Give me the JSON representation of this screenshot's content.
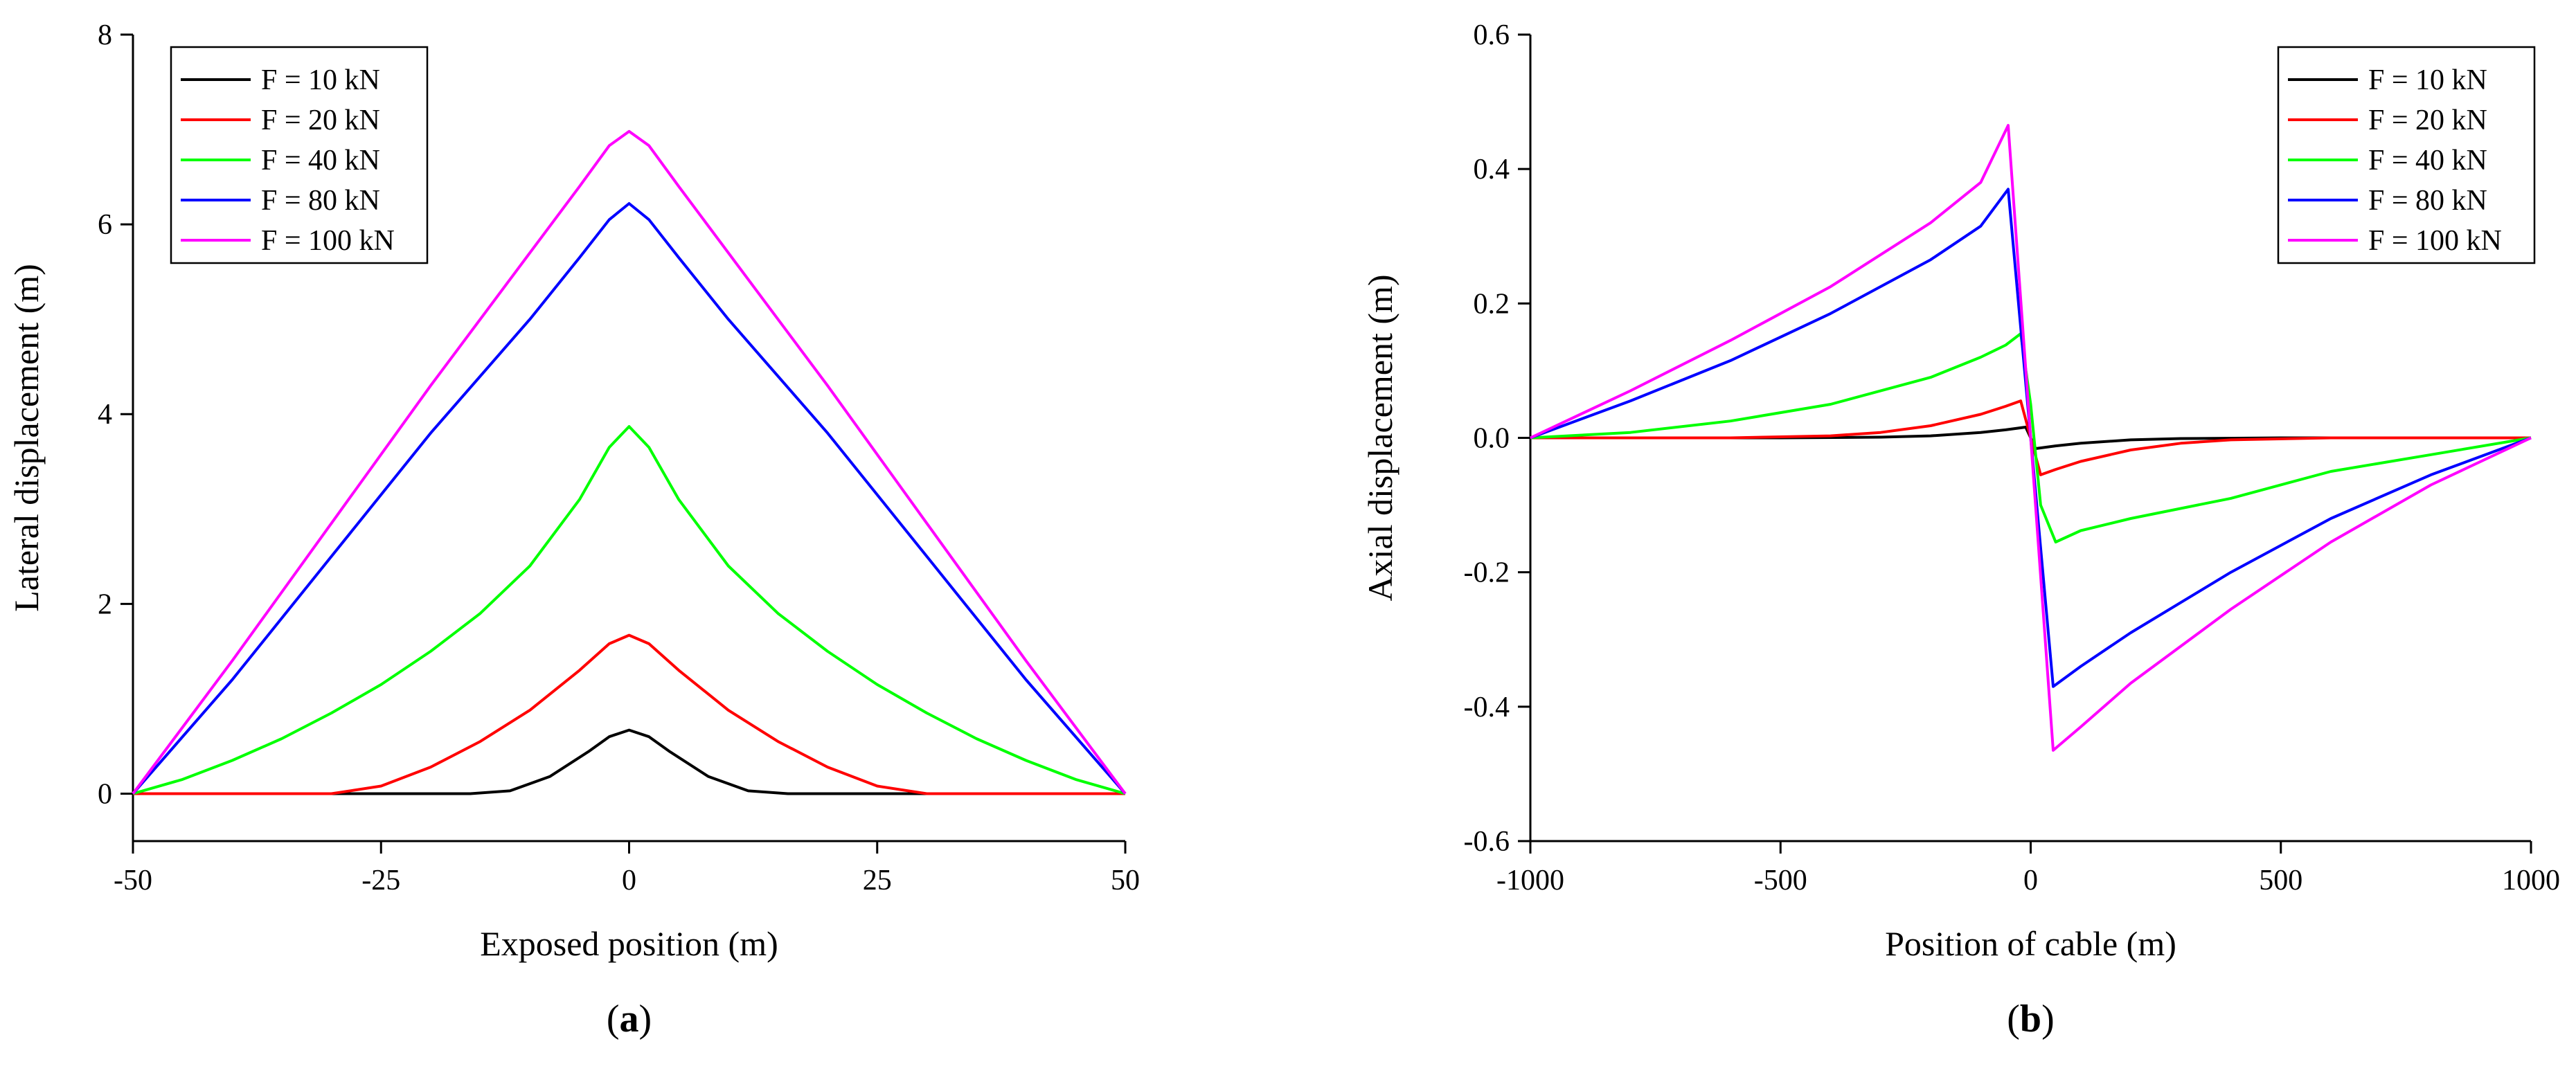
{
  "chart_data": [
    {
      "id": "a",
      "type": "line",
      "panel_label": "a",
      "title": "",
      "xlabel": "Exposed position (m)",
      "ylabel": "Lateral displacement (m)",
      "xlim": [
        -50,
        50
      ],
      "ylim": [
        -0.5,
        8
      ],
      "xticks": [
        -50,
        -25,
        0,
        25,
        50
      ],
      "xtick_labels": [
        "-50",
        "-25",
        "0",
        "25",
        "50"
      ],
      "yticks": [
        0,
        2,
        4,
        6,
        8
      ],
      "ytick_labels": [
        "0",
        "2",
        "4",
        "6",
        "8"
      ],
      "grid": false,
      "legend_position": "top-left",
      "series": [
        {
          "name": "F = 10 kN",
          "color": "#000000",
          "x": [
            -50,
            -20,
            -16,
            -12,
            -8,
            -4,
            -2,
            0,
            2,
            4,
            8,
            12,
            16,
            20,
            50
          ],
          "y": [
            0,
            0,
            0,
            0.03,
            0.18,
            0.45,
            0.6,
            0.67,
            0.6,
            0.45,
            0.18,
            0.03,
            0,
            0,
            0
          ]
        },
        {
          "name": "F = 20 kN",
          "color": "#ff0000",
          "x": [
            -50,
            -30,
            -25,
            -20,
            -15,
            -10,
            -5,
            -2,
            0,
            2,
            5,
            10,
            15,
            20,
            25,
            30,
            50
          ],
          "y": [
            0,
            0,
            0.08,
            0.28,
            0.55,
            0.88,
            1.3,
            1.58,
            1.67,
            1.58,
            1.3,
            0.88,
            0.55,
            0.28,
            0.08,
            0,
            0
          ]
        },
        {
          "name": "F = 40 kN",
          "color": "#00ff00",
          "x": [
            -50,
            -45,
            -40,
            -35,
            -30,
            -25,
            -20,
            -15,
            -10,
            -5,
            -2,
            0,
            2,
            5,
            10,
            15,
            20,
            25,
            30,
            35,
            40,
            45,
            50
          ],
          "y": [
            0,
            0.15,
            0.35,
            0.58,
            0.85,
            1.15,
            1.5,
            1.9,
            2.4,
            3.1,
            3.65,
            3.87,
            3.65,
            3.1,
            2.4,
            1.9,
            1.5,
            1.15,
            0.85,
            0.58,
            0.35,
            0.15,
            0
          ]
        },
        {
          "name": "F = 80 kN",
          "color": "#0000ff",
          "x": [
            -50,
            -40,
            -30,
            -20,
            -10,
            -5,
            -2,
            0,
            2,
            5,
            10,
            20,
            30,
            40,
            50
          ],
          "y": [
            0,
            1.2,
            2.5,
            3.8,
            5.0,
            5.65,
            6.05,
            6.22,
            6.05,
            5.65,
            5.0,
            3.8,
            2.5,
            1.2,
            0
          ]
        },
        {
          "name": "F = 100 kN",
          "color": "#ff00ff",
          "x": [
            -50,
            -40,
            -30,
            -20,
            -10,
            -5,
            -2,
            0,
            2,
            5,
            10,
            20,
            30,
            40,
            50
          ],
          "y": [
            0,
            1.4,
            2.85,
            4.3,
            5.7,
            6.4,
            6.83,
            6.98,
            6.83,
            6.4,
            5.7,
            4.3,
            2.85,
            1.4,
            0
          ]
        }
      ]
    },
    {
      "id": "b",
      "type": "line",
      "panel_label": "b",
      "title": "",
      "xlabel": "Position of cable (m)",
      "ylabel": "Axial displacement (m)",
      "xlim": [
        -1000,
        1000
      ],
      "ylim": [
        -0.6,
        0.6
      ],
      "xticks": [
        -1000,
        -500,
        0,
        500,
        1000
      ],
      "xtick_labels": [
        "-1000",
        "-500",
        "0",
        "500",
        "1000"
      ],
      "yticks": [
        -0.6,
        -0.4,
        -0.2,
        0,
        0.2,
        0.4,
        0.6
      ],
      "ytick_labels": [
        "-0.6",
        "-0.4",
        "-0.2",
        "0.0",
        "0.2",
        "0.4",
        "0.6"
      ],
      "grid": false,
      "legend_position": "top-right",
      "series": [
        {
          "name": "F = 10 kN",
          "color": "#000000",
          "x": [
            -1000,
            -500,
            -300,
            -200,
            -100,
            -50,
            -10,
            10,
            50,
            100,
            200,
            300,
            500,
            1000
          ],
          "y": [
            0,
            0,
            0.001,
            0.003,
            0.008,
            0.012,
            0.016,
            -0.016,
            -0.012,
            -0.008,
            -0.003,
            -0.001,
            0,
            0
          ]
        },
        {
          "name": "F = 20 kN",
          "color": "#ff0000",
          "x": [
            -1000,
            -600,
            -400,
            -300,
            -200,
            -100,
            -50,
            -20,
            20,
            50,
            100,
            200,
            300,
            400,
            600,
            1000
          ],
          "y": [
            0,
            0,
            0.003,
            0.008,
            0.018,
            0.035,
            0.047,
            0.055,
            -0.055,
            -0.047,
            -0.035,
            -0.018,
            -0.008,
            -0.003,
            0,
            0
          ]
        },
        {
          "name": "F = 40 kN",
          "color": "#00ff00",
          "x": [
            -1000,
            -800,
            -600,
            -400,
            -200,
            -100,
            -50,
            -20,
            0,
            20,
            50,
            100,
            200,
            400,
            600,
            800,
            1000
          ],
          "y": [
            0,
            0.008,
            0.025,
            0.05,
            0.09,
            0.12,
            0.138,
            0.155,
            0.05,
            -0.1,
            -0.155,
            -0.138,
            -0.12,
            -0.09,
            -0.05,
            -0.025,
            0
          ]
        },
        {
          "name": "F = 80 kN",
          "color": "#0000ff",
          "x": [
            -1000,
            -800,
            -600,
            -400,
            -200,
            -100,
            -45,
            45,
            100,
            200,
            400,
            600,
            800,
            1000
          ],
          "y": [
            0,
            0.055,
            0.115,
            0.185,
            0.265,
            0.315,
            0.37,
            -0.37,
            -0.34,
            -0.29,
            -0.2,
            -0.12,
            -0.055,
            0
          ]
        },
        {
          "name": "F = 100 kN",
          "color": "#ff00ff",
          "x": [
            -1000,
            -800,
            -600,
            -400,
            -200,
            -100,
            -45,
            45,
            100,
            200,
            400,
            600,
            800,
            1000
          ],
          "y": [
            0,
            0.07,
            0.145,
            0.225,
            0.32,
            0.38,
            0.465,
            -0.465,
            -0.43,
            -0.365,
            -0.255,
            -0.155,
            -0.07,
            0
          ]
        }
      ]
    }
  ]
}
